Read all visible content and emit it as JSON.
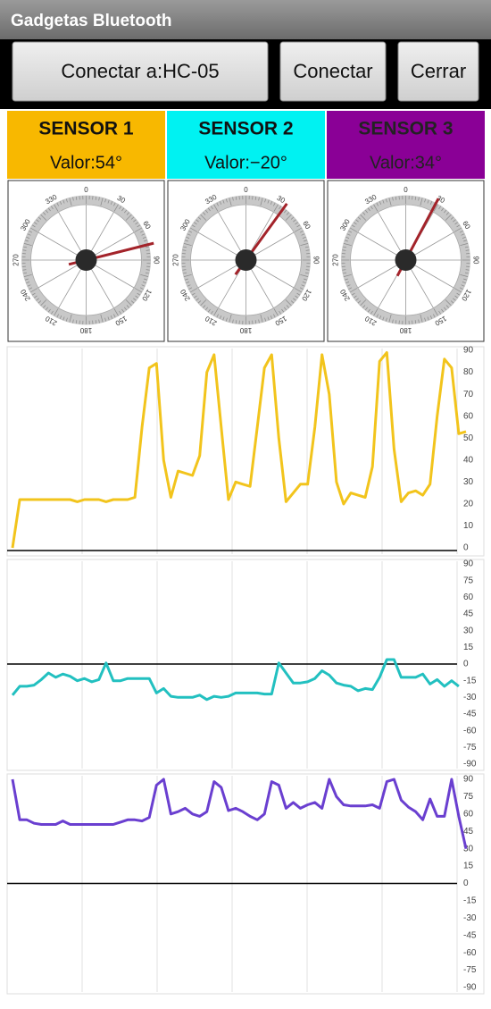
{
  "title": "Gadgetas Bluetooth",
  "buttons": [
    "Conectar a:HC-05",
    "Conectar",
    "Cerrar"
  ],
  "sensors": [
    {
      "name": "SENSOR 1",
      "value": "Valor:54°",
      "color": "#f8b800",
      "needle": 76
    },
    {
      "name": "SENSOR 2",
      "value": "Valor:−20°",
      "color": "#00f2f2",
      "needle": 36
    },
    {
      "name": "SENSOR 3",
      "value": "Valor:34°",
      "color": "#8a0096",
      "needle": 28
    }
  ],
  "dial_labels": [
    0,
    30,
    60,
    90,
    120,
    150,
    180,
    210,
    240,
    270,
    300,
    330
  ],
  "charts": [
    {
      "type": "line",
      "color": "#f2c41c",
      "ylim": [
        0,
        90
      ],
      "yticks": [
        0,
        10,
        20,
        30,
        40,
        50,
        60,
        70,
        80,
        90
      ],
      "values": [
        0,
        22,
        22,
        22,
        22,
        22,
        22,
        22,
        22,
        21,
        22,
        22,
        22,
        21,
        22,
        22,
        22,
        23,
        55,
        82,
        84,
        40,
        23,
        35,
        34,
        33,
        42,
        80,
        88,
        55,
        22,
        30,
        29,
        28,
        55,
        82,
        88,
        50,
        21,
        25,
        29,
        29,
        55,
        88,
        70,
        30,
        20,
        25,
        24,
        23,
        37,
        85,
        89,
        45,
        21,
        25,
        26,
        24,
        29,
        60,
        86,
        82,
        52,
        53
      ]
    },
    {
      "type": "line",
      "color": "#22c0c0",
      "ylim": [
        -90,
        90
      ],
      "yticks": [
        90,
        75,
        60,
        45,
        30,
        15,
        0,
        -15,
        -30,
        -45,
        -60,
        -75,
        -90
      ],
      "values": [
        -28,
        -20,
        -20,
        -19,
        -14,
        -8,
        -12,
        -9,
        -11,
        -15,
        -13,
        -16,
        -14,
        1,
        -15,
        -15,
        -13,
        -13,
        -13,
        -13,
        -26,
        -22,
        -29,
        -30,
        -30,
        -30,
        -28,
        -32,
        -29,
        -30,
        -29,
        -26,
        -26,
        -26,
        -26,
        -27,
        -27,
        1,
        -8,
        -17,
        -17,
        -16,
        -13,
        -6,
        -10,
        -17,
        -19,
        -20,
        -24,
        -22,
        -23,
        -12,
        4,
        4,
        -12,
        -12,
        -12,
        -9,
        -18,
        -14,
        -20,
        -15,
        -20
      ]
    },
    {
      "type": "line",
      "color": "#6a3fd0",
      "ylim": [
        -90,
        90
      ],
      "yticks": [
        90,
        75,
        60,
        45,
        30,
        15,
        0,
        -15,
        -30,
        -45,
        -60,
        -75,
        -90
      ],
      "values": [
        90,
        55,
        55,
        52,
        51,
        51,
        51,
        54,
        51,
        51,
        51,
        51,
        51,
        51,
        51,
        53,
        55,
        55,
        54,
        57,
        85,
        90,
        60,
        62,
        65,
        60,
        58,
        62,
        88,
        83,
        63,
        65,
        62,
        58,
        55,
        60,
        88,
        85,
        65,
        70,
        65,
        68,
        70,
        65,
        90,
        75,
        68,
        67,
        67,
        67,
        68,
        65,
        88,
        90,
        72,
        66,
        62,
        55,
        73,
        58,
        58,
        90,
        58,
        30
      ]
    }
  ]
}
